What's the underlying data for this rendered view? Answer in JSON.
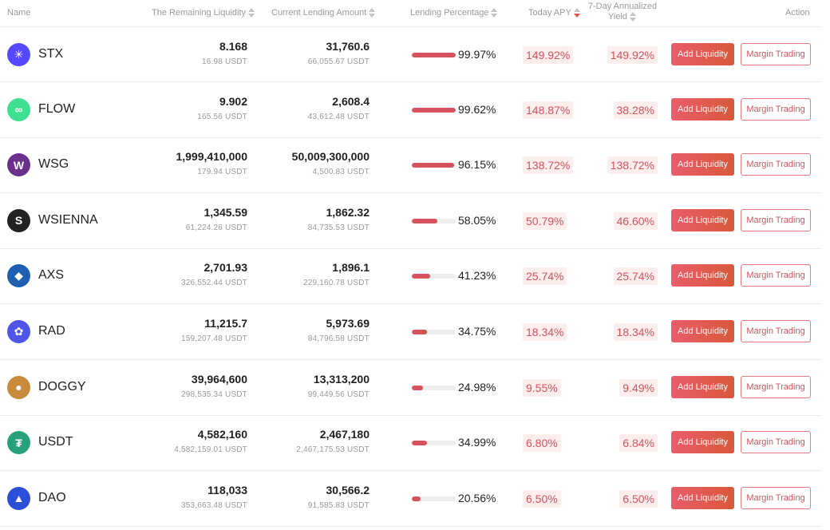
{
  "header": {
    "name": "Name",
    "remaining": "The Remaining Liquidity",
    "lending": "Current Lending Amount",
    "percentage": "Lending Percentage",
    "apy": "Today APY",
    "yield_line1": "7-Day Annualized",
    "yield_line2": "Yield",
    "action": "Action"
  },
  "accent_color": "#d5525a",
  "rows": [
    {
      "name": "STX",
      "icon": "stx-icon",
      "color": "#5546ff",
      "glyph": "✳",
      "remaining": "8.168",
      "remaining_usdt": "16.98 USDT",
      "lending": "31,760.6",
      "lending_usdt": "66,055.67 USDT",
      "pct": "99.97%",
      "fill": 99.97,
      "apy": "149.92%",
      "yield": "149.92%",
      "add": "Add Liquidity",
      "margin": "Margin Trading"
    },
    {
      "name": "FLOW",
      "icon": "flow-icon",
      "color": "#3fe08f",
      "glyph": "∞",
      "remaining": "9.902",
      "remaining_usdt": "165.56 USDT",
      "lending": "2,608.4",
      "lending_usdt": "43,612.48 USDT",
      "pct": "99.62%",
      "fill": 99.62,
      "apy": "148.87%",
      "yield": "38.28%",
      "add": "Add Liquidity",
      "margin": "Margin Trading"
    },
    {
      "name": "WSG",
      "icon": "wsg-icon",
      "color": "#6b2f8e",
      "glyph": "W",
      "remaining": "1,999,410,000",
      "remaining_usdt": "179.94 USDT",
      "lending": "50,009,300,000",
      "lending_usdt": "4,500.83 USDT",
      "pct": "96.15%",
      "fill": 96.15,
      "apy": "138.72%",
      "yield": "138.72%",
      "add": "Add Liquidity",
      "margin": "Margin Trading"
    },
    {
      "name": "WSIENNA",
      "icon": "wsienna-icon",
      "color": "#222222",
      "glyph": "S",
      "remaining": "1,345.59",
      "remaining_usdt": "61,224.26 USDT",
      "lending": "1,862.32",
      "lending_usdt": "84,735.53 USDT",
      "pct": "58.05%",
      "fill": 58.05,
      "apy": "50.79%",
      "yield": "46.60%",
      "add": "Add Liquidity",
      "margin": "Margin Trading"
    },
    {
      "name": "AXS",
      "icon": "axs-icon",
      "color": "#1f5fb3",
      "glyph": "◆",
      "remaining": "2,701.93",
      "remaining_usdt": "326,552.44 USDT",
      "lending": "1,896.1",
      "lending_usdt": "229,160.78 USDT",
      "pct": "41.23%",
      "fill": 41.23,
      "apy": "25.74%",
      "yield": "25.74%",
      "add": "Add Liquidity",
      "margin": "Margin Trading"
    },
    {
      "name": "RAD",
      "icon": "rad-icon",
      "color": "#4f55e6",
      "glyph": "✿",
      "remaining": "11,215.7",
      "remaining_usdt": "159,207.48 USDT",
      "lending": "5,973.69",
      "lending_usdt": "84,796.58 USDT",
      "pct": "34.75%",
      "fill": 34.75,
      "apy": "18.34%",
      "yield": "18.34%",
      "add": "Add Liquidity",
      "margin": "Margin Trading"
    },
    {
      "name": "DOGGY",
      "icon": "doggy-icon",
      "color": "#c98a3c",
      "glyph": "●",
      "remaining": "39,964,600",
      "remaining_usdt": "298,535.34 USDT",
      "lending": "13,313,200",
      "lending_usdt": "99,449.56 USDT",
      "pct": "24.98%",
      "fill": 24.98,
      "apy": "9.55%",
      "yield": "9.49%",
      "add": "Add Liquidity",
      "margin": "Margin Trading"
    },
    {
      "name": "USDT",
      "icon": "usdt-icon",
      "color": "#26a17b",
      "glyph": "₮",
      "remaining": "4,582,160",
      "remaining_usdt": "4,582,159.01 USDT",
      "lending": "2,467,180",
      "lending_usdt": "2,467,175.53 USDT",
      "pct": "34.99%",
      "fill": 34.99,
      "apy": "6.80%",
      "yield": "6.84%",
      "add": "Add Liquidity",
      "margin": "Margin Trading"
    },
    {
      "name": "DAO",
      "icon": "dao-icon",
      "color": "#2b4fd6",
      "glyph": "▲",
      "remaining": "118,033",
      "remaining_usdt": "353,663.48 USDT",
      "lending": "30,566.2",
      "lending_usdt": "91,585.83 USDT",
      "pct": "20.56%",
      "fill": 20.56,
      "apy": "6.50%",
      "yield": "6.50%",
      "add": "Add Liquidity",
      "margin": "Margin Trading"
    }
  ]
}
